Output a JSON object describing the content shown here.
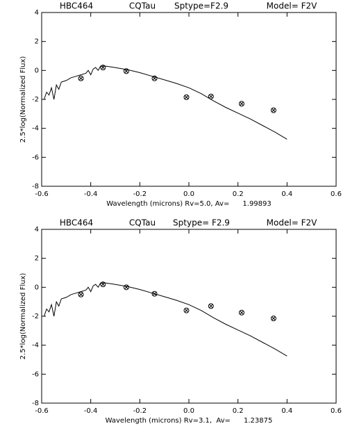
{
  "chart_data": [
    {
      "type": "line-scatter",
      "title_items": [
        "HBC464",
        "CQTau",
        "Sptype=F2.9",
        "Model= F2V"
      ],
      "x_label": "Wavelength (microns) Rv=5.0, Av=      1.99893",
      "y_label": "2.5*log(Normalized Flux)",
      "xlim": [
        -0.6,
        0.6
      ],
      "ylim": [
        -8,
        4
      ],
      "xticks": [
        -0.6,
        -0.4,
        -0.2,
        {
          "value": 0,
          "label": "0.0"
        },
        0.2,
        0.4,
        0.6
      ],
      "yticks": [
        -8,
        -6,
        -4,
        -2,
        0,
        2,
        4
      ],
      "model": {
        "x": [
          -0.59,
          -0.58,
          -0.57,
          -0.56,
          -0.55,
          -0.54,
          -0.53,
          -0.52,
          -0.5,
          -0.48,
          -0.46,
          -0.44,
          -0.42,
          -0.41,
          -0.4,
          -0.39,
          -0.38,
          -0.37,
          -0.36,
          -0.34,
          -0.32,
          -0.3,
          -0.25,
          -0.2,
          -0.15,
          -0.1,
          -0.05,
          0,
          0.05,
          0.1,
          0.15,
          0.2,
          0.25,
          0.3,
          0.35,
          0.4
        ],
        "values": [
          -2.0,
          -1.5,
          -1.7,
          -1.2,
          -2.0,
          -1.0,
          -1.3,
          -0.8,
          -0.7,
          -0.5,
          -0.4,
          -0.3,
          -0.2,
          0.0,
          -0.3,
          0.1,
          0.2,
          0.0,
          0.3,
          0.3,
          0.25,
          0.2,
          0.05,
          -0.15,
          -0.4,
          -0.65,
          -0.9,
          -1.2,
          -1.6,
          -2.1,
          -2.55,
          -2.95,
          -3.35,
          -3.8,
          -4.25,
          -4.75
        ]
      },
      "observed": {
        "x": [
          -0.44,
          -0.35,
          -0.255,
          -0.14,
          -0.01,
          0.09,
          0.215,
          0.345
        ],
        "values": [
          -0.55,
          0.2,
          -0.05,
          -0.55,
          -1.85,
          -1.8,
          -2.3,
          -2.75
        ]
      }
    },
    {
      "type": "line-scatter",
      "title_items": [
        "HBC464",
        "CQTau",
        "Sptype= F2.9",
        "Model= F2V"
      ],
      "x_label": "Wavelength (microns) Rv=3.1,  Av=      1.23875",
      "y_label": "2.5*log(Normalized Flux)",
      "xlim": [
        -0.6,
        0.6
      ],
      "ylim": [
        -8,
        4
      ],
      "xticks": [
        -0.6,
        -0.4,
        -0.2,
        {
          "value": 0,
          "label": "0.0"
        },
        0.2,
        0.4,
        0.6
      ],
      "yticks": [
        -8,
        -6,
        -4,
        -2,
        0,
        2,
        4
      ],
      "model": {
        "x": [
          -0.59,
          -0.58,
          -0.57,
          -0.56,
          -0.55,
          -0.54,
          -0.53,
          -0.52,
          -0.5,
          -0.48,
          -0.46,
          -0.44,
          -0.42,
          -0.41,
          -0.4,
          -0.39,
          -0.38,
          -0.37,
          -0.36,
          -0.34,
          -0.32,
          -0.3,
          -0.25,
          -0.2,
          -0.15,
          -0.1,
          -0.05,
          0,
          0.05,
          0.1,
          0.15,
          0.2,
          0.25,
          0.3,
          0.35,
          0.4
        ],
        "values": [
          -2.0,
          -1.5,
          -1.7,
          -1.2,
          -2.0,
          -1.0,
          -1.3,
          -0.8,
          -0.7,
          -0.5,
          -0.4,
          -0.3,
          -0.2,
          0.0,
          -0.3,
          0.1,
          0.2,
          0.0,
          0.3,
          0.3,
          0.25,
          0.2,
          0.05,
          -0.15,
          -0.4,
          -0.65,
          -0.9,
          -1.2,
          -1.6,
          -2.1,
          -2.55,
          -2.95,
          -3.35,
          -3.8,
          -4.25,
          -4.75
        ]
      },
      "observed": {
        "x": [
          -0.44,
          -0.35,
          -0.255,
          -0.14,
          -0.01,
          0.09,
          0.215,
          0.345
        ],
        "values": [
          -0.5,
          0.2,
          0,
          -0.45,
          -1.6,
          -1.3,
          -1.75,
          -2.15
        ]
      }
    }
  ]
}
